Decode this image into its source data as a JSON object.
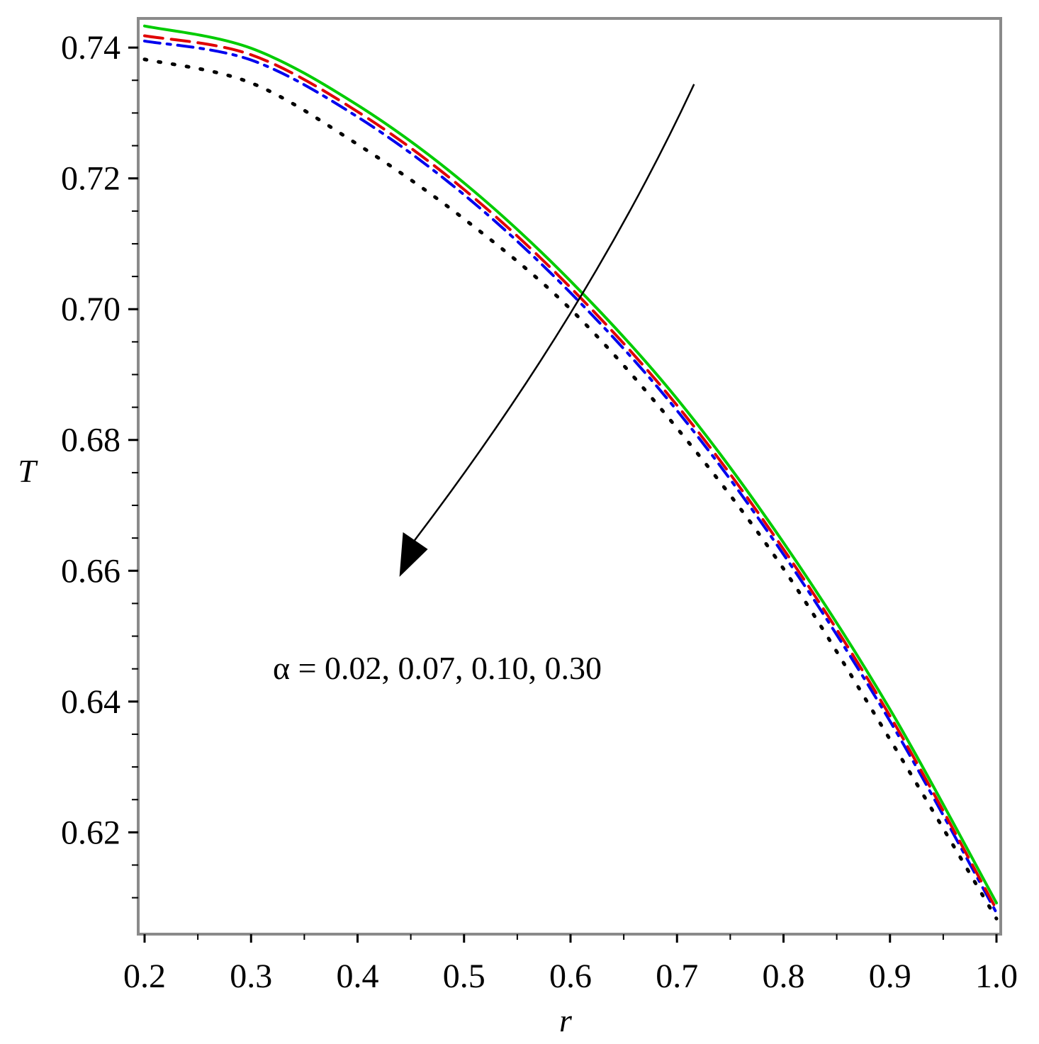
{
  "chart_data": {
    "type": "line",
    "xlabel": "r",
    "ylabel": "T",
    "xlim": [
      0.2,
      1.0
    ],
    "ylim": [
      0.6066,
      0.7437
    ],
    "x_ticks": [
      0.2,
      0.3,
      0.4,
      0.5,
      0.6,
      0.7,
      0.8,
      0.9,
      1.0
    ],
    "x_tick_labels": [
      "0.2",
      "0.3",
      "0.4",
      "0.5",
      "0.6",
      "0.7",
      "0.8",
      "0.9",
      "1.0"
    ],
    "y_ticks": [
      0.62,
      0.64,
      0.66,
      0.68,
      0.7,
      0.72,
      0.74
    ],
    "y_tick_labels": [
      "0.62",
      "0.64",
      "0.66",
      "0.68",
      "0.70",
      "0.72",
      "0.74"
    ],
    "grid": false,
    "legend": "none",
    "x": [
      0.2,
      0.3,
      0.4,
      0.5,
      0.6,
      0.7,
      0.8,
      0.9,
      1.0
    ],
    "series": [
      {
        "color": "#00cc00",
        "style": "solid",
        "values": [
          0.7433,
          0.7399,
          0.7312,
          0.7193,
          0.7043,
          0.6863,
          0.6643,
          0.6388,
          0.6092
        ]
      },
      {
        "color": "#e00000",
        "style": "dash",
        "values": [
          0.7418,
          0.7389,
          0.7302,
          0.7183,
          0.7033,
          0.6853,
          0.6633,
          0.6378,
          0.6082
        ]
      },
      {
        "color": "#0000ee",
        "style": "dashdot",
        "values": [
          0.741,
          0.7381,
          0.7294,
          0.7175,
          0.7025,
          0.6845,
          0.6625,
          0.637,
          0.6077
        ]
      },
      {
        "color": "#000000",
        "style": "dot",
        "values": [
          0.7382,
          0.7346,
          0.7252,
          0.7138,
          0.7,
          0.6818,
          0.6603,
          0.6342,
          0.6068
        ]
      }
    ],
    "annotations": [
      {
        "text": "α = 0.02, 0.07, 0.10, 0.30",
        "x": 0.44,
        "y": 0.644
      }
    ],
    "arrow": {
      "from": [
        0.716,
        0.7344
      ],
      "to": [
        0.44,
        0.662
      ],
      "color": "#000000"
    }
  }
}
